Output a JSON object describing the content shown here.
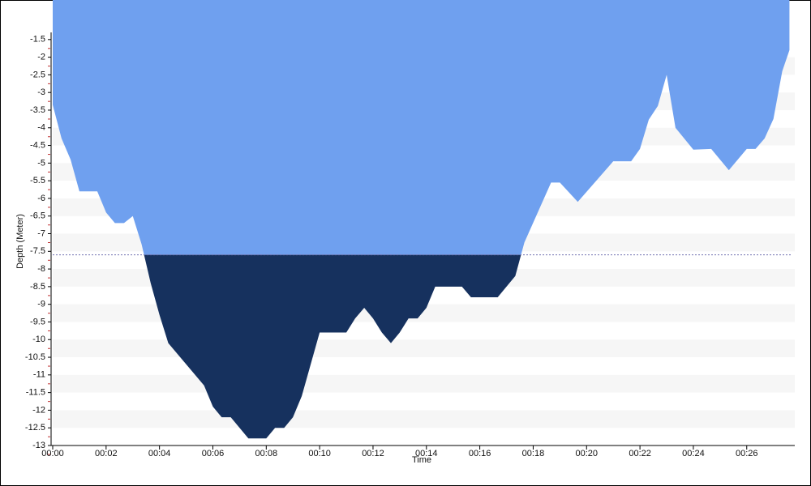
{
  "chart_data": {
    "type": "area",
    "x_label": "Time",
    "y_label": "Depth (Meter)",
    "x": [
      0,
      0.33,
      0.67,
      1.0,
      1.67,
      2.0,
      2.33,
      2.67,
      3.0,
      3.33,
      3.67,
      4.0,
      4.33,
      5.0,
      5.67,
      6.0,
      6.33,
      6.67,
      7.33,
      8.0,
      8.33,
      8.67,
      9.0,
      9.33,
      10.0,
      11.0,
      11.33,
      11.67,
      12.0,
      12.33,
      12.67,
      13.0,
      13.33,
      13.67,
      14.0,
      14.33,
      15.33,
      15.67,
      16.67,
      17.33,
      17.67,
      18.67,
      19.0,
      19.67,
      21.0,
      21.67,
      22.0,
      22.33,
      22.67,
      23.0,
      23.33,
      24.0,
      24.67,
      25.33,
      26.0,
      26.33,
      26.67,
      27.0,
      27.33,
      27.6
    ],
    "series": [
      {
        "name": "Depth",
        "color": "#6fa0ef",
        "deep_color": "#16315e",
        "values": [
          -3.35,
          -4.3,
          -4.9,
          -5.8,
          -5.8,
          -6.4,
          -6.7,
          -6.7,
          -6.5,
          -7.3,
          -8.4,
          -9.3,
          -10.1,
          -10.7,
          -11.3,
          -11.9,
          -12.2,
          -12.2,
          -12.8,
          -12.8,
          -12.5,
          -12.5,
          -12.2,
          -11.6,
          -9.8,
          -9.8,
          -9.4,
          -9.1,
          -9.4,
          -9.8,
          -10.1,
          -9.8,
          -9.4,
          -9.4,
          -9.1,
          -8.5,
          -8.5,
          -8.8,
          -8.8,
          -8.2,
          -7.25,
          -5.55,
          -5.55,
          -6.1,
          -4.95,
          -4.95,
          -4.6,
          -3.77,
          -3.38,
          -2.5,
          -4.0,
          -4.62,
          -4.6,
          -5.2,
          -4.6,
          -4.6,
          -4.3,
          -3.75,
          -2.4,
          -1.8
        ]
      }
    ],
    "threshold_depth": -7.6,
    "xlim": [
      0,
      27.8
    ],
    "ylim": [
      -13,
      -0.38
    ],
    "xticks": [
      {
        "value": 0,
        "label": "00:00"
      },
      {
        "value": 2,
        "label": "00:02"
      },
      {
        "value": 4,
        "label": "00:04"
      },
      {
        "value": 6,
        "label": "00:06"
      },
      {
        "value": 8,
        "label": "00:08"
      },
      {
        "value": 10,
        "label": "00:10"
      },
      {
        "value": 12,
        "label": "00:12"
      },
      {
        "value": 14,
        "label": "00:14"
      },
      {
        "value": 16,
        "label": "00:16"
      },
      {
        "value": 18,
        "label": "00:18"
      },
      {
        "value": 20,
        "label": "00:20"
      },
      {
        "value": 22,
        "label": "00:22"
      },
      {
        "value": 24,
        "label": "00:24"
      },
      {
        "value": 26,
        "label": "00:26"
      }
    ],
    "yticks": [
      -1.5,
      -2,
      -2.5,
      -3,
      -3.5,
      -4,
      -4.5,
      -5,
      -5.5,
      -6,
      -6.5,
      -7,
      -7.5,
      -8,
      -8.5,
      -9,
      -9.5,
      -10,
      -10.5,
      -11,
      -11.5,
      -12,
      -12.5,
      -13
    ],
    "grid": "bands"
  }
}
